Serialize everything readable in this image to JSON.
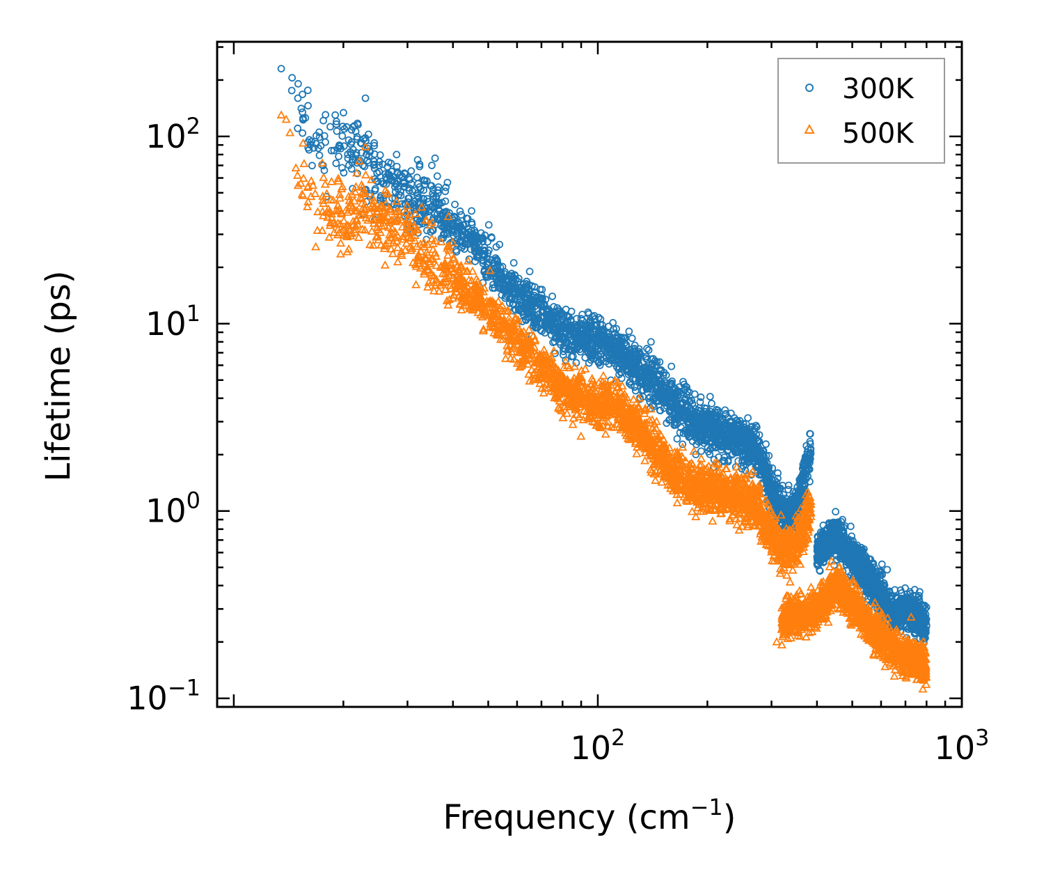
{
  "chart_data": {
    "type": "scatter",
    "title": "",
    "xlabel": "Frequency (cm",
    "xlabel_sup": "−1",
    "xlabel_tail": ")",
    "ylabel": "Lifetime (ps)",
    "xscale": "log",
    "yscale": "log",
    "xlim": [
      9,
      1000
    ],
    "ylim": [
      0.09,
      320
    ],
    "x_ticks": [
      {
        "value": 100,
        "base": "10",
        "exp": "2"
      },
      {
        "value": 1000,
        "base": "10",
        "exp": "3"
      }
    ],
    "y_ticks": [
      {
        "value": 0.1,
        "base": "10",
        "exp": "−1"
      },
      {
        "value": 1,
        "base": "10",
        "exp": "0"
      },
      {
        "value": 10,
        "base": "10",
        "exp": "1"
      },
      {
        "value": 100,
        "base": "10",
        "exp": "2"
      }
    ],
    "legend": {
      "placement": "top-right"
    },
    "series": [
      {
        "name": "300K",
        "color": "#1f77b4",
        "marker": "circle",
        "anchors": [
          [
            13.5,
            230
          ],
          [
            15,
            160
          ],
          [
            16.5,
            95
          ],
          [
            19,
            100
          ],
          [
            23,
            75
          ],
          [
            26,
            55
          ],
          [
            31,
            45
          ],
          [
            35,
            42
          ],
          [
            40,
            33
          ],
          [
            45,
            28
          ],
          [
            50,
            22
          ],
          [
            55,
            17
          ],
          [
            60,
            14
          ],
          [
            70,
            11
          ],
          [
            80,
            9
          ],
          [
            90,
            8.5
          ],
          [
            100,
            8
          ],
          [
            110,
            7.5
          ],
          [
            120,
            6.5
          ],
          [
            140,
            5
          ],
          [
            160,
            3.8
          ],
          [
            180,
            3.1
          ],
          [
            200,
            2.8
          ],
          [
            240,
            2.4
          ],
          [
            270,
            2.2
          ],
          [
            300,
            1.3
          ],
          [
            330,
            0.9
          ],
          [
            350,
            1.0
          ],
          [
            370,
            1.6
          ],
          [
            385,
            2.0
          ],
          [
            400,
            0.6
          ],
          [
            450,
            0.75
          ],
          [
            500,
            0.55
          ],
          [
            550,
            0.45
          ],
          [
            600,
            0.35
          ],
          [
            650,
            0.28
          ],
          [
            700,
            0.3
          ],
          [
            760,
            0.28
          ],
          [
            800,
            0.24
          ]
        ],
        "outliers": [
          [
            13.5,
            230
          ],
          [
            15,
            160
          ],
          [
            19,
            130
          ],
          [
            23,
            160
          ],
          [
            28,
            80
          ],
          [
            32,
            75
          ],
          [
            35,
            70
          ],
          [
            45,
            40
          ],
          [
            65,
            19
          ],
          [
            75,
            14
          ],
          [
            140,
            8
          ],
          [
            142,
            6.5
          ],
          [
            145,
            6
          ],
          [
            470,
            0.9
          ],
          [
            720,
            0.37
          ]
        ]
      },
      {
        "name": "500K",
        "color": "#ff7f0e",
        "marker": "triangle",
        "anchors": [
          [
            13.5,
            130
          ],
          [
            15,
            65
          ],
          [
            16.5,
            45
          ],
          [
            18,
            40
          ],
          [
            20,
            35
          ],
          [
            23,
            42
          ],
          [
            26,
            35
          ],
          [
            31,
            28
          ],
          [
            35,
            22
          ],
          [
            40,
            18
          ],
          [
            45,
            14
          ],
          [
            50,
            12
          ],
          [
            55,
            10
          ],
          [
            60,
            8
          ],
          [
            70,
            6
          ],
          [
            80,
            4.5
          ],
          [
            90,
            4.0
          ],
          [
            100,
            3.6
          ],
          [
            110,
            3.8
          ],
          [
            120,
            3.2
          ],
          [
            140,
            2.3
          ],
          [
            160,
            1.6
          ],
          [
            180,
            1.4
          ],
          [
            200,
            1.3
          ],
          [
            240,
            1.2
          ],
          [
            270,
            1.1
          ],
          [
            300,
            0.75
          ],
          [
            330,
            0.6
          ],
          [
            360,
            0.7
          ],
          [
            385,
            1.1
          ],
          [
            320,
            0.25
          ],
          [
            400,
            0.3
          ],
          [
            450,
            0.4
          ],
          [
            500,
            0.32
          ],
          [
            550,
            0.25
          ],
          [
            600,
            0.22
          ],
          [
            650,
            0.18
          ],
          [
            700,
            0.17
          ],
          [
            760,
            0.16
          ],
          [
            800,
            0.15
          ]
        ],
        "outliers": [
          [
            13.5,
            130
          ],
          [
            15.5,
            92
          ],
          [
            17.5,
            72
          ],
          [
            19,
            34
          ],
          [
            23,
            88
          ],
          [
            26,
            26
          ],
          [
            28,
            45
          ],
          [
            42,
            20
          ],
          [
            45,
            17
          ],
          [
            130,
            4.0
          ],
          [
            140,
            3.5
          ],
          [
            145,
            3.0
          ],
          [
            310,
            0.2
          ],
          [
            465,
            0.33
          ]
        ]
      }
    ]
  }
}
